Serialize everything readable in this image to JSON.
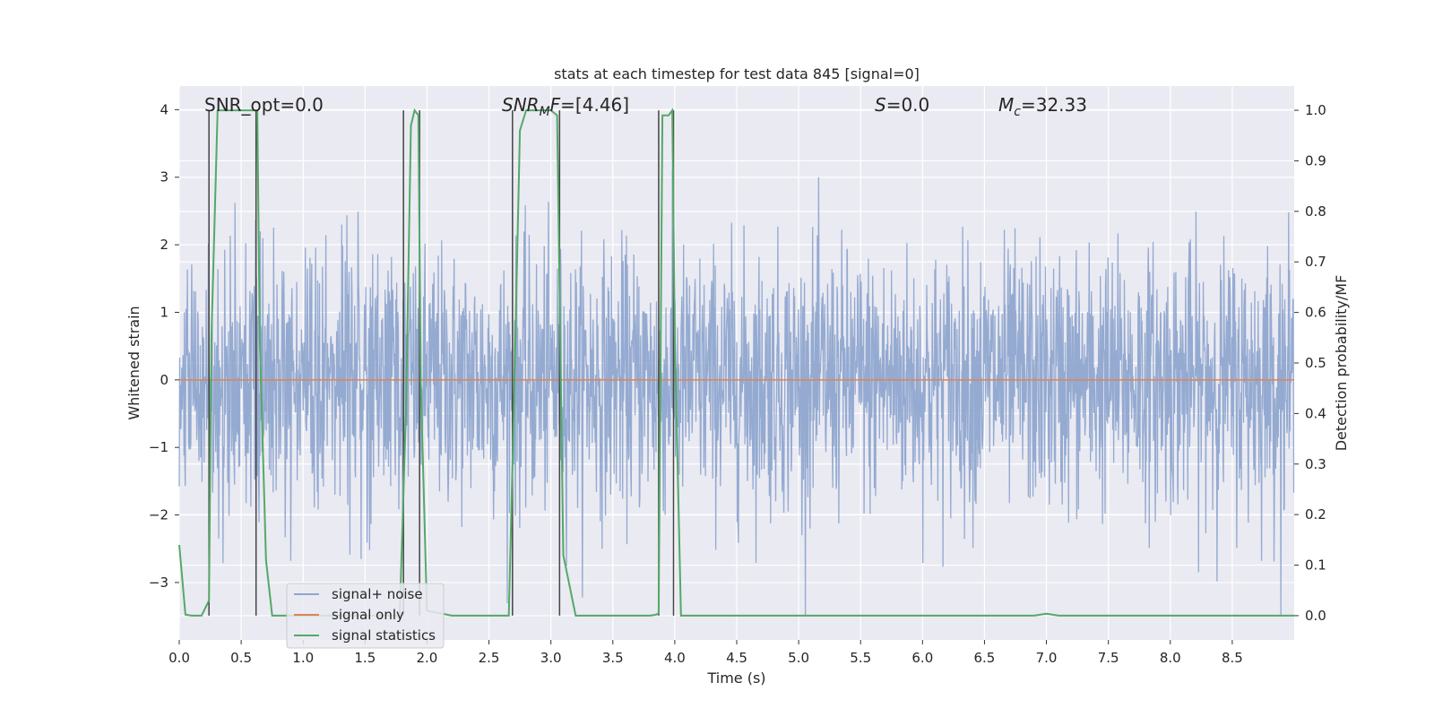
{
  "chart_data": {
    "type": "line",
    "title": "stats at each timestep for test data 845 [signal=0]",
    "xlabel": "Time (s)",
    "ylabel_left": "Whitened strain",
    "ylabel_right": "Detection probability/MF",
    "xlim": [
      0,
      9.0
    ],
    "ylim_left": [
      -3.85,
      4.35
    ],
    "ylim_right": [
      -0.048,
      1.048
    ],
    "xticks": [
      "0.0",
      "0.5",
      "1.0",
      "1.5",
      "2.0",
      "2.5",
      "3.0",
      "3.5",
      "4.0",
      "4.5",
      "5.0",
      "5.5",
      "6.0",
      "6.5",
      "7.0",
      "7.5",
      "8.0",
      "8.5"
    ],
    "yticks_left": [
      "4",
      "3",
      "2",
      "1",
      "0",
      "−1",
      "−2",
      "−3"
    ],
    "yticks_right": [
      "1.0",
      "0.9",
      "0.8",
      "0.7",
      "0.6",
      "0.5",
      "0.4",
      "0.3",
      "0.2",
      "0.1",
      "0.0"
    ],
    "grid": true,
    "legend_position": "lower-left",
    "annotations": {
      "snr_opt": "SNR_opt=0.0",
      "snr_mf_sym": "SNR",
      "snr_mf_sub": "M",
      "snr_mf_rest": "F",
      "snr_mf_val": "=[4.46]",
      "s_sym": "S",
      "s_val": "=0.0",
      "mc_sym": "M",
      "mc_sub": "c",
      "mc_val": "=32.33"
    },
    "series": [
      {
        "name": "signal+ noise",
        "color": "#8fa6cf",
        "description_values": "whitened strain noise, roughly within -2.6 to 2.6 with spikes up to 4.0 and down to -3.5"
      },
      {
        "name": "signal only",
        "color": "#dd8452",
        "y": 0
      },
      {
        "name": "signal statistics",
        "color": "#55a868",
        "x": [
          0.0,
          0.05,
          0.1,
          0.18,
          0.24,
          0.26,
          0.31,
          0.35,
          0.55,
          0.61,
          0.63,
          0.65,
          0.7,
          0.75,
          1.0,
          1.5,
          1.78,
          1.83,
          1.87,
          1.9,
          1.93,
          1.95,
          2.0,
          2.2,
          2.6,
          2.66,
          2.7,
          2.75,
          2.8,
          2.9,
          3.0,
          3.05,
          3.1,
          3.15,
          3.2,
          3.5,
          3.8,
          3.85,
          3.87,
          3.9,
          3.95,
          3.98,
          4.0,
          4.05,
          4.12,
          4.5,
          5.0,
          6.0,
          6.9,
          7.0,
          7.1,
          7.5,
          8.0,
          8.5,
          9.0
        ],
        "y": [
          0.14,
          0.002,
          0.0,
          0.0,
          0.03,
          0.55,
          1.0,
          1.0,
          1.0,
          1.0,
          1.0,
          0.55,
          0.11,
          0.0,
          0.0,
          0.0,
          0.0,
          0.4,
          0.97,
          1.0,
          0.99,
          0.46,
          0.01,
          0.0,
          0.0,
          0.0,
          0.4,
          0.96,
          1.0,
          1.0,
          1.0,
          0.99,
          0.12,
          0.06,
          0.0,
          0.0,
          0.0,
          0.002,
          0.005,
          0.99,
          0.99,
          1.0,
          0.55,
          0.0,
          0.0,
          0.0,
          0.0,
          0.0,
          0.0,
          0.004,
          0.0,
          0.0,
          0.0,
          0.0,
          0.0
        ]
      },
      {
        "name": "detection markers",
        "color": "#444444",
        "x": [
          0.24,
          0.62,
          1.81,
          1.94,
          2.69,
          3.07,
          3.87,
          3.99
        ]
      }
    ],
    "colors": {
      "plot_bg": "#eaeaf2",
      "grid": "#ffffff",
      "noise": "#8fa6cf",
      "signal": "#dd8452",
      "stat": "#55a868",
      "marker": "#444444"
    }
  }
}
